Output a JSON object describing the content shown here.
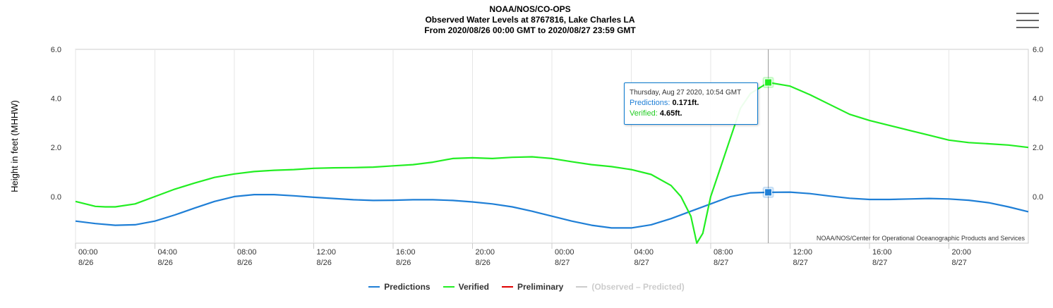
{
  "title": {
    "line1": "NOAA/NOS/CO-OPS",
    "line2": "Observed Water Levels at 8767816, Lake Charles LA",
    "line3": "From 2020/08/26 00:00 GMT to 2020/08/27 23:59 GMT"
  },
  "menu_icon": "hamburger-menu-icon",
  "credit": "NOAA/NOS/Center for Operational Oceanographic Products and Services",
  "tooltip": {
    "date": "Thursday, Aug 27 2020, 10:54 GMT",
    "pred_label": "Predictions: ",
    "pred_value": "0.171ft.",
    "ver_label": "Verified: ",
    "ver_value": "4.65ft."
  },
  "legend": [
    {
      "label": "Predictions",
      "color": "#1f7fd6",
      "enabled": true
    },
    {
      "label": "Verified",
      "color": "#22ee22",
      "enabled": true
    },
    {
      "label": "Preliminary",
      "color": "#e00000",
      "enabled": true
    },
    {
      "label": "(Observed – Predicted)",
      "color": "#cccccc",
      "enabled": false
    }
  ],
  "chart_data": {
    "type": "line",
    "ylabel": "Height in feet (MHHW)",
    "ylim": [
      -1.9,
      6.0
    ],
    "yticks": [
      "6.0",
      "4.0",
      "2.0",
      "0.0"
    ],
    "ytick_values": [
      6,
      4,
      2,
      0
    ],
    "xlim_hours": [
      0,
      48
    ],
    "xticks": [
      {
        "time": "00:00",
        "date": "8/26",
        "hour": 0
      },
      {
        "time": "04:00",
        "date": "8/26",
        "hour": 4
      },
      {
        "time": "08:00",
        "date": "8/26",
        "hour": 8
      },
      {
        "time": "12:00",
        "date": "8/26",
        "hour": 12
      },
      {
        "time": "16:00",
        "date": "8/26",
        "hour": 16
      },
      {
        "time": "20:00",
        "date": "8/26",
        "hour": 20
      },
      {
        "time": "00:00",
        "date": "8/27",
        "hour": 24
      },
      {
        "time": "04:00",
        "date": "8/27",
        "hour": 28
      },
      {
        "time": "08:00",
        "date": "8/27",
        "hour": 32
      },
      {
        "time": "12:00",
        "date": "8/27",
        "hour": 36
      },
      {
        "time": "16:00",
        "date": "8/27",
        "hour": 40
      },
      {
        "time": "20:00",
        "date": "8/27",
        "hour": 44
      }
    ],
    "grid": true,
    "legend_position": "bottom",
    "crosshair_hour": 34.9,
    "series": [
      {
        "name": "Predictions",
        "color": "#1f7fd6",
        "x": [
          0,
          1,
          2,
          3,
          4,
          5,
          6,
          7,
          8,
          9,
          10,
          11,
          12,
          13,
          14,
          15,
          16,
          17,
          18,
          19,
          20,
          21,
          22,
          23,
          24,
          25,
          26,
          27,
          28,
          29,
          30,
          31,
          32,
          33,
          34,
          34.9,
          36,
          37,
          38,
          39,
          40,
          41,
          42,
          43,
          44,
          45,
          46,
          47,
          48
        ],
        "values": [
          -1.0,
          -1.1,
          -1.17,
          -1.15,
          -1.0,
          -0.75,
          -0.47,
          -0.2,
          0.0,
          0.08,
          0.08,
          0.03,
          -0.03,
          -0.08,
          -0.13,
          -0.16,
          -0.15,
          -0.13,
          -0.13,
          -0.16,
          -0.22,
          -0.3,
          -0.42,
          -0.6,
          -0.8,
          -1.0,
          -1.17,
          -1.28,
          -1.28,
          -1.15,
          -0.9,
          -0.6,
          -0.3,
          0.0,
          0.15,
          0.171,
          0.18,
          0.12,
          0.02,
          -0.07,
          -0.12,
          -0.12,
          -0.1,
          -0.08,
          -0.1,
          -0.15,
          -0.25,
          -0.42,
          -0.62
        ]
      },
      {
        "name": "Verified",
        "color": "#22ee22",
        "x": [
          0,
          1,
          1.5,
          2,
          3,
          4,
          5,
          6,
          7,
          8,
          9,
          10,
          11,
          12,
          13,
          14,
          15,
          16,
          17,
          18,
          19,
          20,
          21,
          22,
          23,
          24,
          25,
          26,
          27,
          28,
          29,
          30,
          30.5,
          31,
          31.3,
          31.6,
          32,
          32.5,
          33,
          33.5,
          34,
          34.9,
          36,
          37,
          38,
          39,
          40,
          41,
          42,
          43,
          44,
          45,
          46,
          47,
          48
        ],
        "values": [
          -0.2,
          -0.4,
          -0.42,
          -0.42,
          -0.3,
          0.0,
          0.3,
          0.55,
          0.78,
          0.92,
          1.02,
          1.07,
          1.1,
          1.15,
          1.17,
          1.18,
          1.2,
          1.25,
          1.3,
          1.4,
          1.55,
          1.58,
          1.55,
          1.6,
          1.62,
          1.55,
          1.42,
          1.3,
          1.22,
          1.1,
          0.9,
          0.45,
          0.0,
          -0.8,
          -1.9,
          -1.5,
          0.0,
          1.2,
          2.4,
          3.6,
          4.2,
          4.65,
          4.5,
          4.15,
          3.75,
          3.35,
          3.1,
          2.9,
          2.7,
          2.5,
          2.3,
          2.2,
          2.15,
          2.1,
          2.0
        ]
      }
    ]
  }
}
